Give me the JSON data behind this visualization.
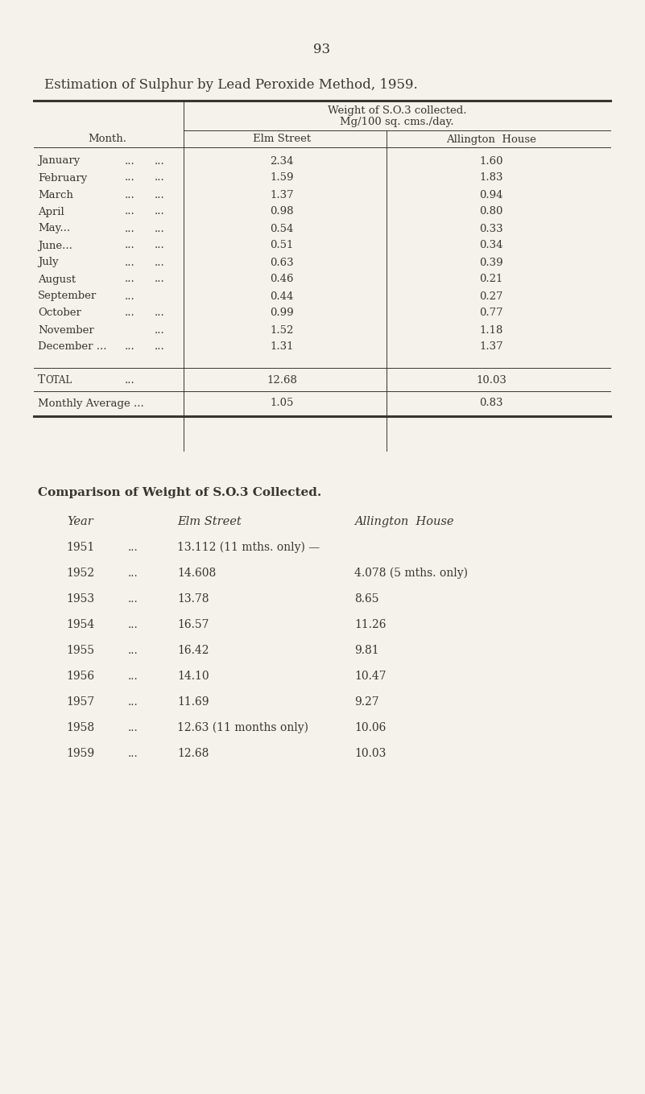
{
  "page_number": "93",
  "title1": "Estimation of Sulphur by Lead Peroxide Method, 1959.",
  "table1_header_col1": "Month.",
  "table1_header_top": "Weight of S.O.3 collected.",
  "table1_header_top2": "Mg/100 sq. cms./day.",
  "table1_header_elm": "Elm Street",
  "table1_header_all": "Allington  House",
  "table1_months": [
    "January",
    "February",
    "March",
    "April",
    "May...",
    "June...",
    "July",
    "August",
    "September",
    "October",
    "November",
    "December ..."
  ],
  "table1_dots1": [
    "...",
    "...",
    "...",
    "...",
    "...",
    "...",
    "...",
    "...",
    "...",
    "...",
    "",
    "..."
  ],
  "table1_dots2": [
    "...",
    "...",
    "...",
    "...",
    "...",
    "...",
    "...",
    "...",
    "",
    "...",
    "...",
    "..."
  ],
  "table1_elm": [
    "2.34",
    "1.59",
    "1.37",
    "0.98",
    "0.54",
    "0.51",
    "0.63",
    "0.46",
    "0.44",
    "0.99",
    "1.52",
    "1.31"
  ],
  "table1_all": [
    "1.60",
    "1.83",
    "0.94",
    "0.80",
    "0.33",
    "0.34",
    "0.39",
    "0.21",
    "0.27",
    "0.77",
    "1.18",
    "1.37"
  ],
  "table1_total_label": "Total",
  "table1_total_dots": "...",
  "table1_total_elm": "12.68",
  "table1_total_all": "10.03",
  "table1_avg_label": "Monthly Average ...",
  "table1_avg_elm": "1.05",
  "table1_avg_all": "0.83",
  "title2": "Comparison of Weight of S.O.3 Collected.",
  "table2_header_year": "Year",
  "table2_header_elm": "Elm Street",
  "table2_header_all": "Allington  House",
  "table2_years": [
    "1951",
    "1952",
    "1953",
    "1954",
    "1955",
    "1956",
    "1957",
    "1958",
    "1959"
  ],
  "table2_dots": [
    "...",
    "...",
    "...",
    "...",
    "...",
    "...",
    "...",
    "...",
    "..."
  ],
  "table2_elm": [
    "13.112 (11 mths. only) —",
    "14.608",
    "13.78",
    "16.57",
    "16.42",
    "14.10",
    "11.69",
    "12.63 (11 months only)",
    "12.68"
  ],
  "table2_all": [
    "",
    "4.078 (5 mths. only)",
    "8.65",
    "11.26",
    "9.81",
    "10.47",
    "9.27",
    "10.06",
    "10.03"
  ],
  "bg_color": "#f5f2eb",
  "text_color": "#3a3530",
  "fs_page": 12,
  "fs_title1": 12,
  "fs_header": 9.5,
  "fs_data": 9.5,
  "fs_title2": 11,
  "fs_table2": 10
}
